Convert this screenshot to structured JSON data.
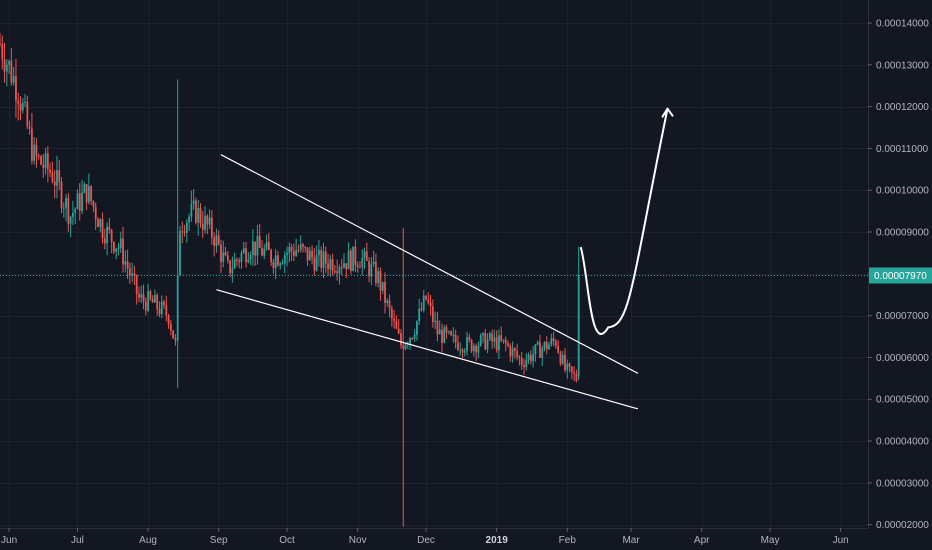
{
  "chart_data": {
    "type": "candlestick",
    "title": "",
    "xlabel": "",
    "ylabel": "",
    "x_axis_labels": [
      {
        "label": "Jun",
        "bold": false
      },
      {
        "label": "Jul",
        "bold": false
      },
      {
        "label": "Aug",
        "bold": false
      },
      {
        "label": "Sep",
        "bold": false
      },
      {
        "label": "Oct",
        "bold": false
      },
      {
        "label": "Nov",
        "bold": false
      },
      {
        "label": "Dec",
        "bold": false
      },
      {
        "label": "2019",
        "bold": true
      },
      {
        "label": "Feb",
        "bold": false
      },
      {
        "label": "Mar",
        "bold": false
      },
      {
        "label": "Apr",
        "bold": false
      },
      {
        "label": "May",
        "bold": false
      },
      {
        "label": "Jun",
        "bold": false
      }
    ],
    "y_axis_labels": [
      "0.00014000",
      "0.00013000",
      "0.00012000",
      "0.00011000",
      "0.00010000",
      "0.00009000",
      "0.00008000",
      "0.00007000",
      "0.00006000",
      "0.00005000",
      "0.00004000",
      "0.00003000",
      "0.00002000"
    ],
    "y_ticks": [
      0.00014,
      0.00013,
      0.00012,
      0.00011,
      0.0001,
      9e-05,
      8e-05,
      7e-05,
      6e-05,
      5e-05,
      4e-05,
      3e-05,
      2e-05
    ],
    "ylim": [
      1.92e-05,
      0.0001455
    ],
    "xlim": [
      "2018-05-28",
      "2019-06-13"
    ],
    "current_price": 7.97e-05,
    "current_price_label": "0.00007970",
    "colors": {
      "background": "#131722",
      "up": "#26a69a",
      "down": "#ef5350",
      "grid": "#1e2230",
      "trendline": "#ffffff",
      "current_price_line": "#26a69a",
      "axis_text": "#b2b5be"
    },
    "key_candles": [
      {
        "date": "2018-08-14",
        "high": 0.0001265,
        "low": 5.27e-05,
        "note": "long wick up"
      },
      {
        "date": "2018-11-21",
        "high": 9.1e-05,
        "low": 1.95e-05,
        "note": "long wick down"
      },
      {
        "date": "2019-02-06",
        "open": 5.55e-05,
        "close": 7.97e-05,
        "high": 8.65e-05,
        "low": 5.45e-05,
        "note": "breakout candle"
      }
    ],
    "trendlines": [
      {
        "name": "upper",
        "points": [
          [
            "2018-09-02",
            0.0001085
          ],
          [
            "2019-03-04",
            5.62e-05
          ]
        ]
      },
      {
        "name": "lower",
        "points": [
          [
            "2018-08-31",
            7.62e-05
          ],
          [
            "2019-03-04",
            4.77e-05
          ]
        ]
      }
    ],
    "projection_arrow": {
      "points": [
        [
          "2019-02-07",
          8.62e-05
        ],
        [
          "2019-02-19",
          6.72e-05
        ],
        [
          "2019-03-01",
          7.45e-05
        ],
        [
          "2019-03-17",
          0.0001195
        ]
      ]
    },
    "grid": true
  }
}
